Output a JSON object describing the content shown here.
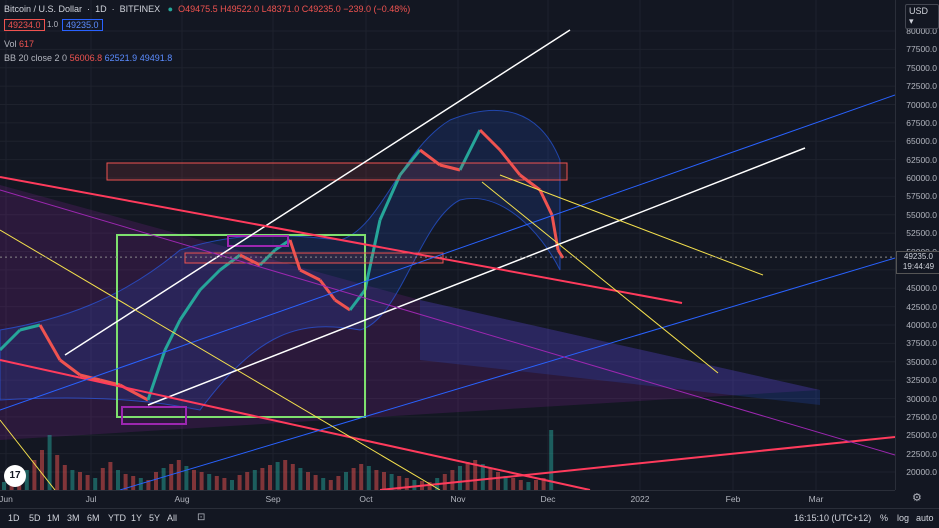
{
  "header": {
    "symbol": "Bitcoin / U.S. Dollar",
    "interval": "1D",
    "exchange": "BITFINEX",
    "ohlc": "O49475.5  H49522.0  L48371.0  C49235.0  −239.0 (−0.48%)",
    "bid": "49234.0",
    "spread": "1.0",
    "ask": "49235.0"
  },
  "indicators": {
    "vol_label": "Vol",
    "vol_value": "617",
    "bb_label": "BB 20 close 2 0",
    "bb_basis": "56006.8",
    "bb_upper": "62521.9",
    "bb_lower": "49491.8"
  },
  "price_axis": {
    "currency": "USD",
    "ticks": [
      "80000.0",
      "77500.0",
      "75000.0",
      "72500.0",
      "70000.0",
      "67500.0",
      "65000.0",
      "62500.0",
      "60000.0",
      "57500.0",
      "55000.0",
      "52500.0",
      "50000.0",
      "47500.0",
      "45000.0",
      "42500.0",
      "40000.0",
      "37500.0",
      "35000.0",
      "32500.0",
      "30000.0",
      "27500.0",
      "25000.0",
      "22500.0",
      "20000.0"
    ],
    "last_price": "49235.0",
    "countdown": "19:44:49"
  },
  "time_axis": [
    "Jun",
    "Jul",
    "Aug",
    "Sep",
    "Oct",
    "Nov",
    "Dec",
    "2022",
    "Feb",
    "Mar"
  ],
  "bottom_bar": {
    "ranges": [
      "1D",
      "5D",
      "1M",
      "3M",
      "6M",
      "YTD",
      "1Y",
      "5Y",
      "All"
    ],
    "clock": "16:15:10 (UTC+12)",
    "percent": "%",
    "log": "log",
    "auto": "auto"
  },
  "colors": {
    "background": "#131722",
    "up": "#26a69a",
    "down": "#ef5350",
    "bb_fill": "#2962ff"
  },
  "icons": {
    "logo": "tradingview-logo-icon",
    "settings": "gear-icon",
    "compare": "calendar-range-icon"
  }
}
